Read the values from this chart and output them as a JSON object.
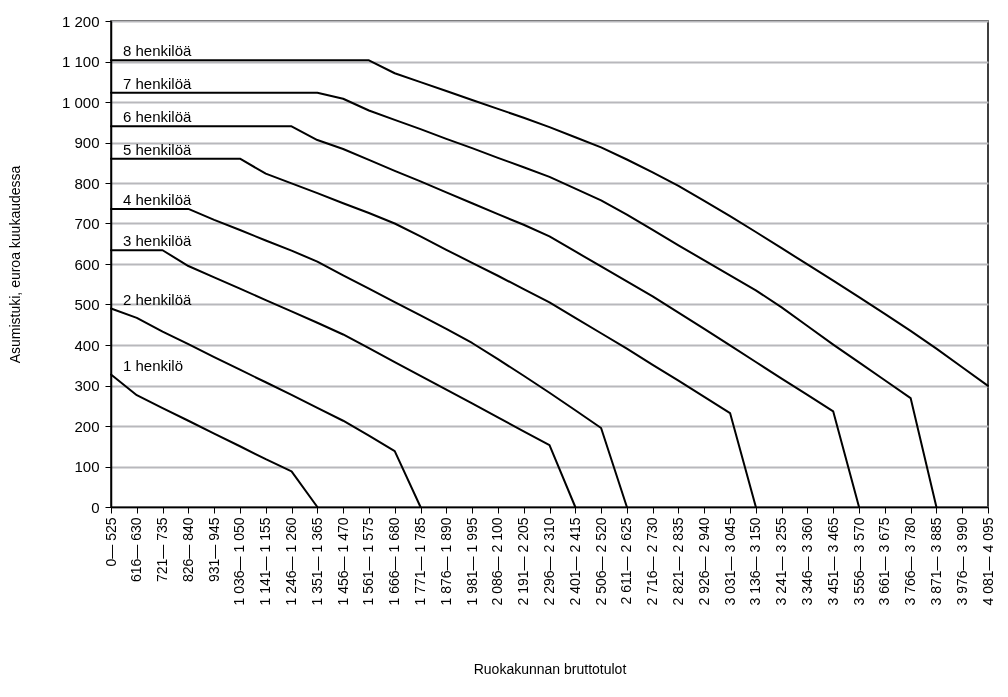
{
  "chart_data": {
    "type": "line",
    "xlabel": "Ruokakunnan bruttotulot",
    "ylabel": "Asumistuki, euroa kuukaudessa",
    "categories": [
      "0— 525",
      "616— 630",
      "721— 735",
      "826— 840",
      "931— 945",
      "1 036— 1 050",
      "1 141— 1 155",
      "1 246— 1 260",
      "1 351— 1 365",
      "1 456— 1 470",
      "1 561— 1 575",
      "1 666— 1 680",
      "1 771— 1 785",
      "1 876— 1 890",
      "1 981— 1 995",
      "2 086— 2 100",
      "2 191— 2 205",
      "2 296— 2 310",
      "2 401— 2 415",
      "2 506— 2 520",
      "2 611— 2 625",
      "2 716— 2 730",
      "2 821— 2 835",
      "2 926— 2 940",
      "3 031— 3 045",
      "3 136— 3 150",
      "3 241— 3 255",
      "3 346— 3 360",
      "3 451— 3 465",
      "3 556— 3 570",
      "3 661— 3 675",
      "3 766— 3 780",
      "3 871— 3 885",
      "3 976— 3 990",
      "4 081— 4 095"
    ],
    "ylim": [
      0,
      1200
    ],
    "yticks": [
      0,
      100,
      200,
      300,
      400,
      500,
      600,
      700,
      800,
      900,
      {
        "value": 1000,
        "label": "1 000"
      },
      {
        "value": 1100,
        "label": "1 100"
      },
      {
        "value": 1200,
        "label": "1 200"
      }
    ],
    "grid": "y",
    "legend": false,
    "marker": "none",
    "line_style": "solid",
    "series": [
      {
        "name": "1 henkilö",
        "color": "#000000",
        "values": [
          327,
          276,
          244,
          213,
          181,
          150,
          118,
          88,
          0,
          null,
          null,
          null,
          null,
          null,
          null,
          null,
          null,
          null,
          null,
          null,
          null,
          null,
          null,
          null,
          null,
          null,
          null,
          null,
          null,
          null,
          null,
          null,
          null,
          null,
          null
        ]
      },
      {
        "name": "2 henkilöä",
        "color": "#000000",
        "values": [
          490,
          467,
          433,
          402,
          370,
          339,
          308,
          277,
          245,
          213,
          176,
          138,
          0,
          null,
          null,
          null,
          null,
          null,
          null,
          null,
          null,
          null,
          null,
          null,
          null,
          null,
          null,
          null,
          null,
          null,
          null,
          null,
          null,
          null,
          null
        ]
      },
      {
        "name": "3 henkilöä",
        "color": "#000000",
        "values": [
          634,
          634,
          634,
          595,
          567,
          539,
          511,
          483,
          455,
          426,
          392,
          358,
          324,
          290,
          256,
          221,
          187,
          153,
          0,
          null,
          null,
          null,
          null,
          null,
          null,
          null,
          null,
          null,
          null,
          null,
          null,
          null,
          null,
          null,
          null
        ]
      },
      {
        "name": "4 henkilöä",
        "color": "#000000",
        "values": [
          736,
          736,
          736,
          736,
          709,
          684,
          658,
          633,
          606,
          572,
          539,
          506,
          473,
          440,
          405,
          365,
          324,
          282,
          239,
          195,
          0,
          null,
          null,
          null,
          null,
          null,
          null,
          null,
          null,
          null,
          null,
          null,
          null,
          null,
          null
        ]
      },
      {
        "name": "5 henkilöä",
        "color": "#000000",
        "values": [
          860,
          860,
          860,
          860,
          860,
          860,
          823,
          799,
          775,
          750,
          726,
          700,
          668,
          635,
          603,
          571,
          538,
          505,
          467,
          429,
          391,
          351,
          312,
          272,
          232,
          0,
          null,
          null,
          null,
          null,
          null,
          null,
          null,
          null,
          null
        ]
      },
      {
        "name": "6 henkilöä",
        "color": "#000000",
        "values": [
          940,
          940,
          940,
          940,
          940,
          940,
          940,
          940,
          906,
          884,
          857,
          830,
          804,
          777,
          750,
          723,
          697,
          668,
          631,
          594,
          557,
          520,
          480,
          440,
          399,
          358,
          317,
          277,
          236,
          0,
          null,
          null,
          null,
          null,
          null
        ]
      },
      {
        "name": "7 henkilöä",
        "color": "#000000",
        "values": [
          1023,
          1023,
          1023,
          1023,
          1023,
          1023,
          1023,
          1023,
          1023,
          1008,
          979,
          956,
          933,
          909,
          886,
          862,
          839,
          815,
          786,
          757,
          722,
          684,
          646,
          609,
          572,
          535,
          493,
          447,
          401,
          357,
          313,
          269,
          0,
          null,
          null
        ]
      },
      {
        "name": "8 henkilöä",
        "color": "#000000",
        "values": [
          1103,
          1103,
          1103,
          1103,
          1103,
          1103,
          1103,
          1103,
          1103,
          1103,
          1103,
          1071,
          1049,
          1027,
          1005,
          983,
          961,
          938,
          913,
          888,
          858,
          826,
          793,
          756,
          718,
          679,
          639,
          599,
          559,
          518,
          477,
          435,
          391,
          345,
          299
        ]
      }
    ]
  }
}
